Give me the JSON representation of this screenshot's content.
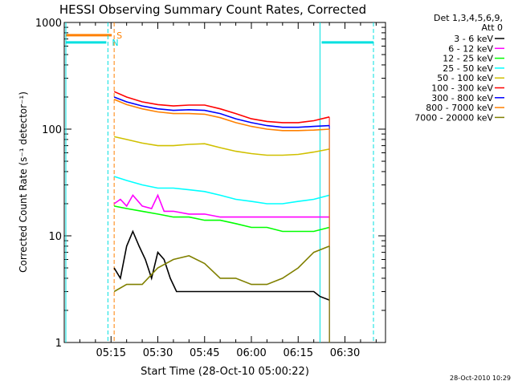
{
  "chart_data": {
    "type": "line",
    "title": "HESSI Observing Summary Count Rates, Corrected",
    "xlabel": "Start Time (28-Oct-10 05:00:22)",
    "ylabel": "Corrected Count Rate (s⁻¹ detector⁻¹)",
    "x_unit": "UT time of day",
    "xlim": [
      "05:00",
      "06:43"
    ],
    "ylim": [
      1,
      1000
    ],
    "yscale": "log",
    "x_ticks": [
      "05:15",
      "05:30",
      "05:45",
      "06:00",
      "06:15",
      "06:30"
    ],
    "y_ticks": [
      "1",
      "10",
      "100",
      "1000"
    ],
    "legend_header": [
      "Det 1,3,4,5,6,9,",
      "Att 0"
    ],
    "legend_placement": "outside-right",
    "date_stamp": "28-Oct-2010 10:29",
    "markers": {
      "saa": {
        "label": "S",
        "color": "#ff8000",
        "start": "05:00",
        "end": "05:16",
        "level": 760
      },
      "night": {
        "label": "N",
        "color": "#00e0e0",
        "end_a": "05:14",
        "start_b": "06:22",
        "level": 650
      }
    },
    "series": [
      {
        "name": "3 - 6 keV",
        "color": "#000000",
        "x": [
          "05:16",
          "05:18",
          "05:20",
          "05:22",
          "05:24",
          "05:26",
          "05:28",
          "05:30",
          "05:32",
          "05:34",
          "05:36",
          "05:40",
          "05:45",
          "05:50",
          "05:55",
          "06:00",
          "06:05",
          "06:10",
          "06:15",
          "06:20",
          "06:22",
          "06:25"
        ],
        "values": [
          5,
          4,
          8,
          11,
          8,
          6,
          4,
          7,
          6,
          4,
          3,
          3,
          3,
          3,
          3,
          3,
          3,
          3,
          3,
          3,
          2.7,
          2.5
        ]
      },
      {
        "name": "6 - 12 keV",
        "color": "#ff00ff",
        "x": [
          "05:16",
          "05:18",
          "05:20",
          "05:22",
          "05:25",
          "05:28",
          "05:30",
          "05:32",
          "05:35",
          "05:40",
          "05:45",
          "05:50",
          "05:55",
          "06:00",
          "06:05",
          "06:10",
          "06:15",
          "06:20",
          "06:25"
        ],
        "values": [
          20,
          22,
          19,
          24,
          19,
          18,
          24,
          17,
          17,
          16,
          16,
          15,
          15,
          15,
          15,
          15,
          15,
          15,
          15
        ]
      },
      {
        "name": "12 - 25 keV",
        "color": "#00ff00",
        "x": [
          "05:16",
          "05:20",
          "05:25",
          "05:30",
          "05:35",
          "05:40",
          "05:45",
          "05:50",
          "05:55",
          "06:00",
          "06:05",
          "06:10",
          "06:15",
          "06:20",
          "06:25"
        ],
        "values": [
          19,
          18,
          17,
          16,
          15,
          15,
          14,
          14,
          13,
          12,
          12,
          11,
          11,
          11,
          12
        ]
      },
      {
        "name": "25 - 50 keV",
        "color": "#00ffff",
        "x": [
          "05:16",
          "05:20",
          "05:25",
          "05:30",
          "05:35",
          "05:40",
          "05:45",
          "05:50",
          "05:55",
          "06:00",
          "06:05",
          "06:10",
          "06:15",
          "06:20",
          "06:25"
        ],
        "values": [
          36,
          33,
          30,
          28,
          28,
          27,
          26,
          24,
          22,
          21,
          20,
          20,
          21,
          22,
          24
        ]
      },
      {
        "name": "50 - 100 keV",
        "color": "#d0c000",
        "x": [
          "05:16",
          "05:20",
          "05:25",
          "05:30",
          "05:35",
          "05:40",
          "05:45",
          "05:50",
          "05:55",
          "06:00",
          "06:05",
          "06:10",
          "06:15",
          "06:20",
          "06:25"
        ],
        "values": [
          85,
          80,
          74,
          70,
          70,
          72,
          73,
          67,
          62,
          59,
          57,
          57,
          58,
          61,
          65
        ]
      },
      {
        "name": "100 - 300 keV",
        "color": "#ff0000",
        "x": [
          "05:16",
          "05:20",
          "05:25",
          "05:30",
          "05:35",
          "05:40",
          "05:45",
          "05:50",
          "05:55",
          "06:00",
          "06:05",
          "06:10",
          "06:15",
          "06:20",
          "06:25"
        ],
        "values": [
          225,
          200,
          180,
          170,
          165,
          168,
          168,
          155,
          140,
          125,
          118,
          115,
          115,
          120,
          130
        ]
      },
      {
        "name": "300 - 800 keV",
        "color": "#0000ff",
        "x": [
          "05:16",
          "05:20",
          "05:25",
          "05:30",
          "05:35",
          "05:40",
          "05:45",
          "05:50",
          "05:55",
          "06:00",
          "06:05",
          "06:10",
          "06:15",
          "06:20",
          "06:25"
        ],
        "values": [
          200,
          180,
          165,
          155,
          150,
          152,
          150,
          140,
          125,
          115,
          108,
          104,
          104,
          106,
          108
        ]
      },
      {
        "name": "800 - 7000 keV",
        "color": "#ff8000",
        "x": [
          "05:16",
          "05:20",
          "05:25",
          "05:30",
          "05:35",
          "05:40",
          "05:45",
          "05:50",
          "05:55",
          "06:00",
          "06:05",
          "06:10",
          "06:15",
          "06:20",
          "06:25"
        ],
        "values": [
          190,
          170,
          155,
          145,
          140,
          140,
          138,
          128,
          115,
          106,
          100,
          97,
          97,
          98,
          100
        ]
      },
      {
        "name": "7000 - 20000 keV",
        "color": "#808000",
        "x": [
          "05:16",
          "05:20",
          "05:25",
          "05:30",
          "05:35",
          "05:40",
          "05:45",
          "05:50",
          "05:55",
          "06:00",
          "06:05",
          "06:10",
          "06:15",
          "06:20",
          "06:25"
        ],
        "values": [
          3,
          3.5,
          3.5,
          5,
          6,
          6.5,
          5.5,
          4,
          4,
          3.5,
          3.5,
          4,
          5,
          7,
          8
        ]
      }
    ]
  }
}
